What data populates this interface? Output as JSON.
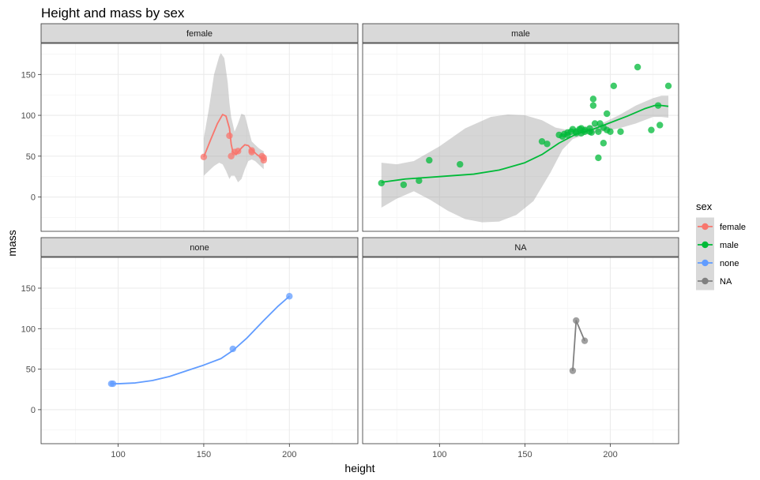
{
  "chart_data": {
    "type": "scatter",
    "title": "Height and mass by sex",
    "xlabel": "height",
    "ylabel": "mass",
    "xlim": [
      55,
      240
    ],
    "ylim": [
      -42,
      188
    ],
    "x_ticks": [
      "100",
      "150",
      "200"
    ],
    "y_ticks": [
      "0",
      "50",
      "100",
      "150"
    ],
    "grid": true,
    "legend": {
      "title": "sex",
      "position": "right",
      "entries": [
        {
          "label": "female",
          "color": "#F8766D"
        },
        {
          "label": "male",
          "color": "#00BA38"
        },
        {
          "label": "none",
          "color": "#619CFF"
        },
        {
          "label": "NA",
          "color": "#808080"
        }
      ]
    },
    "panels": [
      {
        "strip": "female",
        "color": "#F8766D",
        "points": [
          [
            150,
            49
          ],
          [
            165,
            75
          ],
          [
            166,
            50
          ],
          [
            168,
            55
          ],
          [
            170,
            56.2
          ],
          [
            178,
            55
          ],
          [
            178,
            57
          ],
          [
            184,
            50
          ],
          [
            185,
            45
          ],
          [
            185,
            48
          ]
        ],
        "smooth": [
          [
            150,
            49
          ],
          [
            154,
            70
          ],
          [
            158,
            90
          ],
          [
            161,
            101
          ],
          [
            163,
            99
          ],
          [
            165,
            84
          ],
          [
            166,
            65
          ],
          [
            167,
            55
          ],
          [
            169,
            52
          ],
          [
            172,
            60
          ],
          [
            174,
            64
          ],
          [
            176,
            63
          ],
          [
            178,
            58
          ],
          [
            181,
            52
          ],
          [
            183,
            49
          ],
          [
            185,
            46
          ]
        ],
        "band_upper": [
          [
            150,
            72
          ],
          [
            153,
            108
          ],
          [
            156,
            150
          ],
          [
            159,
            172
          ],
          [
            160,
            176
          ],
          [
            162,
            170
          ],
          [
            164,
            140
          ],
          [
            165,
            115
          ],
          [
            166,
            98
          ],
          [
            168,
            80
          ],
          [
            170,
            90
          ],
          [
            172,
            102
          ],
          [
            174,
            100
          ],
          [
            176,
            84
          ],
          [
            178,
            68
          ],
          [
            180,
            64
          ],
          [
            182,
            60
          ],
          [
            184,
            57
          ],
          [
            185,
            56
          ]
        ],
        "band_lower": [
          [
            150,
            26
          ],
          [
            153,
            32
          ],
          [
            156,
            38
          ],
          [
            159,
            42
          ],
          [
            161,
            40
          ],
          [
            163,
            32
          ],
          [
            165,
            22
          ],
          [
            166,
            26
          ],
          [
            168,
            26
          ],
          [
            170,
            18
          ],
          [
            172,
            22
          ],
          [
            174,
            34
          ],
          [
            176,
            44
          ],
          [
            178,
            46
          ],
          [
            180,
            44
          ],
          [
            182,
            40
          ],
          [
            184,
            36
          ],
          [
            185,
            34
          ]
        ]
      },
      {
        "strip": "male",
        "color": "#00BA38",
        "points": [
          [
            66,
            17
          ],
          [
            79,
            15
          ],
          [
            88,
            20
          ],
          [
            94,
            45
          ],
          [
            112,
            40
          ],
          [
            160,
            68
          ],
          [
            163,
            65
          ],
          [
            170,
            76
          ],
          [
            172,
            74
          ],
          [
            173,
            77
          ],
          [
            175,
            76
          ],
          [
            175,
            79
          ],
          [
            177,
            80
          ],
          [
            178,
            83
          ],
          [
            180,
            80
          ],
          [
            180,
            78
          ],
          [
            182,
            83
          ],
          [
            183,
            78
          ],
          [
            183,
            84
          ],
          [
            185,
            80
          ],
          [
            185,
            82
          ],
          [
            188,
            84
          ],
          [
            188,
            80
          ],
          [
            189,
            79
          ],
          [
            190,
            120
          ],
          [
            190,
            112
          ],
          [
            191,
            90
          ],
          [
            193,
            80
          ],
          [
            193,
            48
          ],
          [
            194,
            90
          ],
          [
            196,
            85
          ],
          [
            196,
            66
          ],
          [
            198,
            102
          ],
          [
            198,
            82
          ],
          [
            200,
            80
          ],
          [
            202,
            136
          ],
          [
            206,
            80
          ],
          [
            216,
            159
          ],
          [
            224,
            82
          ],
          [
            228,
            112
          ],
          [
            229,
            88
          ],
          [
            234,
            136
          ]
        ],
        "smooth": [
          [
            66,
            18
          ],
          [
            80,
            22
          ],
          [
            100,
            25
          ],
          [
            120,
            28
          ],
          [
            135,
            33
          ],
          [
            150,
            42
          ],
          [
            160,
            52
          ],
          [
            170,
            66
          ],
          [
            180,
            77
          ],
          [
            190,
            83
          ],
          [
            200,
            91
          ],
          [
            210,
            99
          ],
          [
            220,
            108
          ],
          [
            226,
            112
          ],
          [
            230,
            112
          ],
          [
            234,
            111
          ]
        ],
        "band_upper": [
          [
            66,
            42
          ],
          [
            75,
            40
          ],
          [
            85,
            44
          ],
          [
            100,
            62
          ],
          [
            115,
            84
          ],
          [
            130,
            98
          ],
          [
            140,
            101
          ],
          [
            150,
            100
          ],
          [
            160,
            94
          ],
          [
            168,
            85
          ],
          [
            175,
            82
          ],
          [
            185,
            86
          ],
          [
            195,
            90
          ],
          [
            205,
            100
          ],
          [
            215,
            112
          ],
          [
            225,
            121
          ],
          [
            230,
            124
          ],
          [
            234,
            124
          ]
        ],
        "band_lower": [
          [
            66,
            -13
          ],
          [
            75,
            -2
          ],
          [
            85,
            7
          ],
          [
            95,
            -4
          ],
          [
            105,
            -17
          ],
          [
            115,
            -27
          ],
          [
            125,
            -31
          ],
          [
            135,
            -30
          ],
          [
            145,
            -22
          ],
          [
            155,
            -5
          ],
          [
            165,
            30
          ],
          [
            172,
            58
          ],
          [
            178,
            71
          ],
          [
            185,
            76
          ],
          [
            195,
            80
          ],
          [
            205,
            84
          ],
          [
            215,
            90
          ],
          [
            225,
            98
          ],
          [
            230,
            98
          ],
          [
            234,
            97
          ]
        ]
      },
      {
        "strip": "none",
        "color": "#619CFF",
        "points": [
          [
            96,
            32
          ],
          [
            97,
            32
          ],
          [
            167,
            75
          ],
          [
            200,
            140
          ]
        ],
        "smooth": [
          [
            96,
            32
          ],
          [
            100,
            32
          ],
          [
            110,
            33
          ],
          [
            120,
            36
          ],
          [
            130,
            41
          ],
          [
            140,
            48
          ],
          [
            150,
            55
          ],
          [
            160,
            63
          ],
          [
            167,
            73
          ],
          [
            175,
            88
          ],
          [
            185,
            110
          ],
          [
            193,
            127
          ],
          [
            200,
            140
          ]
        ]
      },
      {
        "strip": "NA",
        "color": "#808080",
        "points": [
          [
            178,
            48
          ],
          [
            180,
            110
          ],
          [
            185,
            85
          ]
        ],
        "path": [
          [
            178,
            48
          ],
          [
            180,
            110
          ],
          [
            185,
            85
          ]
        ]
      }
    ]
  }
}
